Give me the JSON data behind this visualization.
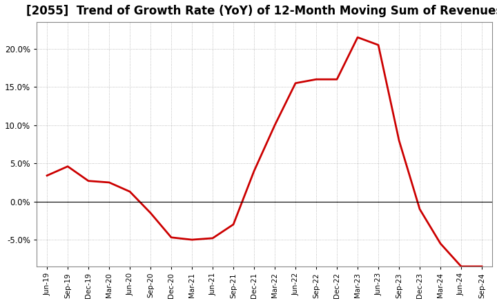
{
  "title": "[2055]  Trend of Growth Rate (YoY) of 12-Month Moving Sum of Revenues",
  "title_fontsize": 12,
  "line_color": "#cc0000",
  "line_width": 2.0,
  "background_color": "#ffffff",
  "plot_bg_color": "#ffffff",
  "grid_color": "#aaaaaa",
  "ylim": [
    -0.085,
    0.235
  ],
  "yticks": [
    -0.05,
    0.0,
    0.05,
    0.1,
    0.15,
    0.2
  ],
  "labels": [
    "Jun-19",
    "Sep-19",
    "Dec-19",
    "Mar-20",
    "Jun-20",
    "Sep-20",
    "Dec-20",
    "Mar-21",
    "Jun-21",
    "Sep-21",
    "Dec-21",
    "Mar-22",
    "Jun-22",
    "Sep-22",
    "Dec-22",
    "Mar-23",
    "Jun-23",
    "Sep-23",
    "Dec-23",
    "Mar-24",
    "Jun-24",
    "Sep-24"
  ],
  "values": [
    0.034,
    0.046,
    0.027,
    0.025,
    0.013,
    -0.015,
    -0.047,
    -0.05,
    -0.048,
    -0.03,
    0.04,
    0.1,
    0.155,
    0.16,
    0.16,
    0.215,
    0.205,
    0.08,
    -0.01,
    -0.055,
    -0.085,
    -0.085
  ]
}
